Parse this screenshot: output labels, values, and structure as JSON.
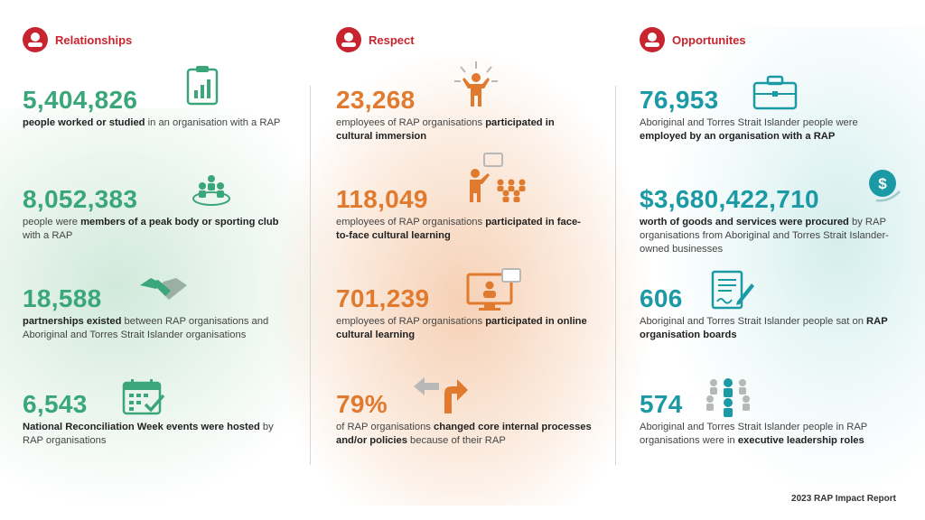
{
  "columns": {
    "relationships": {
      "title": "Relationships",
      "stats": [
        {
          "value": "5,404,826",
          "segments": [
            {
              "t": "people worked or studied",
              "b": true
            },
            {
              "t": " in an organisation with a RAP",
              "b": false
            }
          ]
        },
        {
          "value": "8,052,383",
          "segments": [
            {
              "t": "people were ",
              "b": false
            },
            {
              "t": "members of a peak body or sporting club",
              "b": true
            },
            {
              "t": " with a RAP",
              "b": false
            }
          ]
        },
        {
          "value": "18,588",
          "segments": [
            {
              "t": "partnerships existed",
              "b": true
            },
            {
              "t": " between RAP organisations and Aboriginal and Torres Strait Islander organisations",
              "b": false
            }
          ]
        },
        {
          "value": "6,543",
          "segments": [
            {
              "t": "National Reconciliation Week events were hosted",
              "b": true
            },
            {
              "t": " by RAP organisations",
              "b": false
            }
          ]
        }
      ]
    },
    "respect": {
      "title": "Respect",
      "stats": [
        {
          "value": "23,268",
          "segments": [
            {
              "t": "employees of RAP organisations ",
              "b": false
            },
            {
              "t": "participated in cultural immersion",
              "b": true
            }
          ]
        },
        {
          "value": "118,049",
          "segments": [
            {
              "t": "employees of RAP organisations ",
              "b": false
            },
            {
              "t": "participated in face-to-face cultural learning",
              "b": true
            }
          ]
        },
        {
          "value": "701,239",
          "segments": [
            {
              "t": "employees of RAP organisations ",
              "b": false
            },
            {
              "t": "participated in online cultural learning",
              "b": true
            }
          ]
        },
        {
          "value": "79%",
          "segments": [
            {
              "t": "of RAP organisations ",
              "b": false
            },
            {
              "t": "changed core internal processes and/or policies",
              "b": true
            },
            {
              "t": " because of their RAP",
              "b": false
            }
          ]
        }
      ]
    },
    "opportunities": {
      "title": "Opportunites",
      "stats": [
        {
          "value": "76,953",
          "segments": [
            {
              "t": "Aboriginal and Torres Strait Islander people were ",
              "b": false
            },
            {
              "t": "employed by an organisation with a RAP",
              "b": true
            }
          ]
        },
        {
          "value": "$3,680,422,710",
          "segments": [
            {
              "t": "worth of goods and services were procured",
              "b": true
            },
            {
              "t": " by RAP organisations from Aboriginal and Torres Strait Islander-owned businesses",
              "b": false
            }
          ]
        },
        {
          "value": "606",
          "segments": [
            {
              "t": "Aboriginal and Torres Strait Islander people sat on ",
              "b": false
            },
            {
              "t": "RAP organisation boards",
              "b": true
            }
          ]
        },
        {
          "value": "574",
          "segments": [
            {
              "t": "Aboriginal and Torres Strait Islander people in RAP organisations were in ",
              "b": false
            },
            {
              "t": "executive leadership roles",
              "b": true
            }
          ]
        }
      ]
    }
  },
  "icons": {
    "relationships": [
      "chart-clipboard-icon",
      "group-icon",
      "handshake-icon",
      "calendar-check-icon"
    ],
    "respect": [
      "person-presenting-icon",
      "presenter-audience-icon",
      "online-learning-monitor-icon",
      "change-arrows-icon"
    ],
    "opportunities": [
      "briefcase-icon",
      "dollar-coin-icon",
      "document-sign-icon",
      "leadership-team-icon"
    ]
  },
  "colors": {
    "green": "#3aa67a",
    "orange": "#e07a2e",
    "teal": "#1b9aa6",
    "header_red": "#c8242f"
  },
  "footer": "2023 RAP Impact Report"
}
